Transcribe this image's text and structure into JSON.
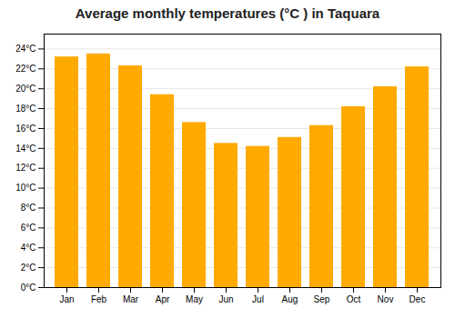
{
  "chart_data": {
    "type": "bar",
    "title": "Average monthly temperatures (°C ) in Taquara",
    "categories": [
      "Jan",
      "Feb",
      "Mar",
      "Apr",
      "May",
      "Jun",
      "Jul",
      "Aug",
      "Sep",
      "Oct",
      "Nov",
      "Dec"
    ],
    "values": [
      23.2,
      23.5,
      22.3,
      19.4,
      16.6,
      14.5,
      14.2,
      15.1,
      16.3,
      18.2,
      20.2,
      22.2
    ],
    "color": "#FFAA00",
    "ylim": [
      0,
      25.5
    ],
    "yticks": [
      {
        "value": 0,
        "label": "0°C"
      },
      {
        "value": 2,
        "label": "2°C"
      },
      {
        "value": 4,
        "label": "4°C"
      },
      {
        "value": 6,
        "label": "6°C"
      },
      {
        "value": 8,
        "label": "8°C"
      },
      {
        "value": 10,
        "label": "10°C"
      },
      {
        "value": 12,
        "label": "12°C"
      },
      {
        "value": 14,
        "label": "14°C"
      },
      {
        "value": 16,
        "label": "16°C"
      },
      {
        "value": 18,
        "label": "18°C"
      },
      {
        "value": 20,
        "label": "20°C"
      },
      {
        "value": 22,
        "label": "22°C"
      },
      {
        "value": 24,
        "label": "24°C"
      }
    ],
    "grid": true
  }
}
